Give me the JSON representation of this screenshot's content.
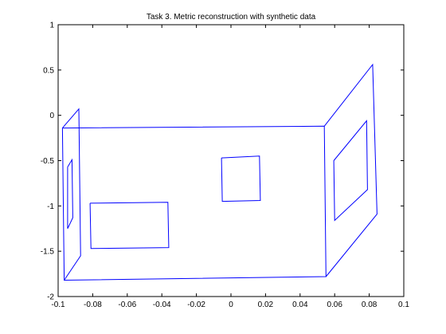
{
  "chart_data": {
    "type": "line",
    "title": "Task 3. Metric reconstruction with synthetic data",
    "xlabel": "",
    "ylabel": "",
    "xlim": [
      -0.1,
      0.1
    ],
    "ylim": [
      -2,
      1
    ],
    "x_ticks": [
      "-0.1",
      "-0.08",
      "-0.06",
      "-0.04",
      "-0.02",
      "0",
      "0.02",
      "0.04",
      "0.06",
      "0.08",
      "0.1"
    ],
    "x_tick_values": [
      -0.1,
      -0.08,
      -0.06,
      -0.04,
      -0.02,
      0,
      0.02,
      0.04,
      0.06,
      0.08,
      0.1
    ],
    "y_ticks": [
      "1",
      "0.5",
      "0",
      "-0.5",
      "-1",
      "-1.5",
      "-2"
    ],
    "y_tick_values": [
      1,
      0.5,
      0,
      -0.5,
      -1,
      -1.5,
      -2
    ],
    "grid": false,
    "line_color": "#0000ff",
    "series": [
      {
        "points": [
          [
            -0.0975,
            -0.14
          ],
          [
            0.054,
            -0.12
          ],
          [
            0.055,
            -1.78
          ],
          [
            -0.0965,
            -1.82
          ],
          [
            -0.0975,
            -0.14
          ]
        ]
      },
      {
        "points": [
          [
            -0.0975,
            -0.14
          ],
          [
            -0.088,
            0.07
          ],
          [
            -0.087,
            -1.55
          ],
          [
            -0.0965,
            -1.82
          ]
        ]
      },
      {
        "points": [
          [
            -0.0945,
            -0.57
          ],
          [
            -0.092,
            -0.49
          ],
          [
            -0.0915,
            -1.13
          ],
          [
            -0.0945,
            -1.25
          ],
          [
            -0.0945,
            -0.57
          ]
        ]
      },
      {
        "points": [
          [
            -0.0815,
            -0.97
          ],
          [
            -0.0365,
            -0.96
          ],
          [
            -0.036,
            -1.46
          ],
          [
            -0.081,
            -1.47
          ],
          [
            -0.0815,
            -0.97
          ]
        ]
      },
      {
        "points": [
          [
            -0.0055,
            -0.47
          ],
          [
            0.0165,
            -0.45
          ],
          [
            0.017,
            -0.94
          ],
          [
            -0.005,
            -0.95
          ],
          [
            -0.0055,
            -0.47
          ]
        ]
      },
      {
        "points": [
          [
            0.054,
            -0.12
          ],
          [
            0.082,
            0.56
          ],
          [
            0.0845,
            -1.09
          ],
          [
            0.055,
            -1.78
          ]
        ]
      },
      {
        "points": [
          [
            0.0595,
            -0.5
          ],
          [
            0.0785,
            -0.06
          ],
          [
            0.079,
            -0.82
          ],
          [
            0.06,
            -1.16
          ],
          [
            0.0595,
            -0.5
          ]
        ]
      }
    ]
  }
}
